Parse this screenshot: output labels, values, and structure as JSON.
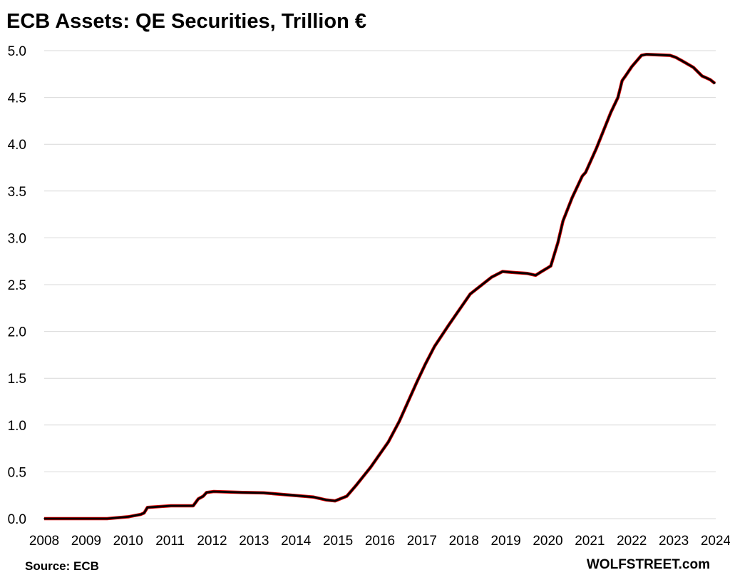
{
  "chart_data": {
    "type": "line",
    "title": "ECB Assets: QE Securities, Trillion €",
    "xlabel": "",
    "ylabel": "",
    "xlim": [
      2008,
      2024
    ],
    "ylim": [
      0,
      5.0
    ],
    "grid": "horizontal",
    "legend": "none",
    "x_ticks": [
      "2008",
      "2009",
      "2010",
      "2011",
      "2012",
      "2013",
      "2014",
      "2015",
      "2016",
      "2017",
      "2018",
      "2019",
      "2020",
      "2021",
      "2022",
      "2023",
      "2024"
    ],
    "y_ticks": [
      "0.0",
      "0.5",
      "1.0",
      "1.5",
      "2.0",
      "2.5",
      "3.0",
      "3.5",
      "4.0",
      "4.5",
      "5.0"
    ],
    "line_color": "#000000",
    "line_shadow_color": "#e00000",
    "grid_color": "#d9d9d9",
    "series": [
      {
        "x": [
          2008.0,
          2009.5,
          2010.0,
          2010.3,
          2010.38,
          2010.46,
          2011.02,
          2011.55,
          2011.67,
          2011.79,
          2011.87,
          2012.04,
          2012.72,
          2013.23,
          2013.91,
          2014.42,
          2014.72,
          2014.93,
          2015.1,
          2015.21,
          2015.44,
          2015.78,
          2016.2,
          2016.46,
          2016.88,
          2017.08,
          2017.3,
          2017.64,
          2018.15,
          2018.66,
          2018.92,
          2019.17,
          2019.51,
          2019.71,
          2019.85,
          2020.07,
          2020.24,
          2020.36,
          2020.58,
          2020.82,
          2020.9,
          2021.16,
          2021.33,
          2021.5,
          2021.67,
          2021.77,
          2021.85,
          2022.0,
          2022.23,
          2022.35,
          2022.91,
          2023.04,
          2023.2,
          2023.47,
          2023.67,
          2023.87,
          2023.98
        ],
        "y": [
          0,
          0,
          0.02,
          0.045,
          0.06,
          0.12,
          0.137,
          0.137,
          0.21,
          0.24,
          0.28,
          0.29,
          0.28,
          0.275,
          0.25,
          0.23,
          0.2,
          0.19,
          0.22,
          0.24,
          0.36,
          0.55,
          0.82,
          1.04,
          1.46,
          1.65,
          1.84,
          2.07,
          2.4,
          2.58,
          2.64,
          2.63,
          2.62,
          2.6,
          2.64,
          2.7,
          2.95,
          3.18,
          3.43,
          3.66,
          3.7,
          3.96,
          4.15,
          4.34,
          4.5,
          4.68,
          4.73,
          4.83,
          4.95,
          4.96,
          4.95,
          4.93,
          4.89,
          4.82,
          4.73,
          4.69,
          4.65
        ]
      }
    ]
  },
  "footer": {
    "source": "Source: ECB",
    "brand": "WOLFSTREET.com"
  }
}
